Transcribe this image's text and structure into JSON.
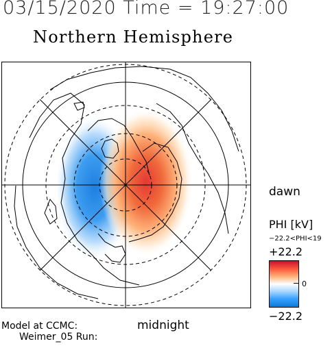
{
  "header": {
    "timestamp": "03/15/2020 Time = 19:27:00",
    "title": "Northern Hemisphere"
  },
  "map": {
    "labels": {
      "dawn": "dawn",
      "midnight": "midnight"
    },
    "pattern": {
      "negative_cell_color": "#1e88e5",
      "positive_cell_color": "#e53935",
      "positive_cell_side": "dawn",
      "negative_cell_side": "dusk"
    }
  },
  "colorbar": {
    "title": "PHI [kV]",
    "range_text": "−22.2<PHI<19",
    "max_label": "+22.2",
    "mid_label": "0",
    "min_label": "−22.2",
    "colors": {
      "max": "#c8102e",
      "mid": "#ffffff",
      "min": "#0a7bd6"
    }
  },
  "footer": {
    "model_line": "Model at CCMC:",
    "run_line": "Weimer_05 Run:"
  }
}
